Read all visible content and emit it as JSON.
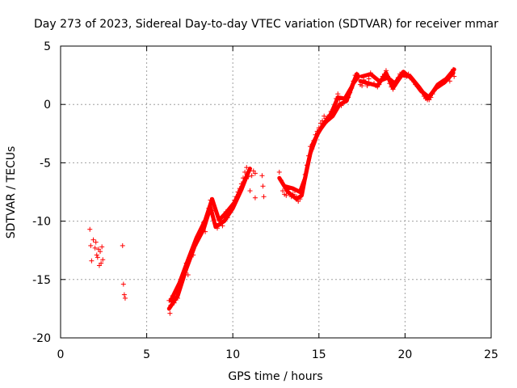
{
  "chart_data": {
    "type": "scatter",
    "title": "Day 273 of 2023, Sidereal Day-to-day VTEC variation (SDTVAR) for receiver mmar",
    "xlabel": "GPS time / hours",
    "ylabel": "SDTVAR / TECUs",
    "xlim": [
      0,
      25
    ],
    "ylim": [
      -20,
      5
    ],
    "xticks": [
      0,
      5,
      10,
      15,
      20,
      25
    ],
    "yticks": [
      -20,
      -15,
      -10,
      -5,
      0,
      5
    ],
    "grid": true,
    "marker": "+",
    "color": "#ff0000",
    "series": [
      {
        "name": "SDTVAR",
        "points": [
          [
            1.7,
            -10.7
          ],
          [
            1.75,
            -12.1
          ],
          [
            1.8,
            -13.4
          ],
          [
            1.9,
            -11.6
          ],
          [
            2.0,
            -12.3
          ],
          [
            2.05,
            -11.8
          ],
          [
            2.1,
            -12.9
          ],
          [
            2.15,
            -13.1
          ],
          [
            2.2,
            -12.4
          ],
          [
            2.25,
            -13.8
          ],
          [
            2.3,
            -12.6
          ],
          [
            2.35,
            -13.6
          ],
          [
            2.4,
            -12.2
          ],
          [
            2.45,
            -13.3
          ],
          [
            3.6,
            -12.1
          ],
          [
            3.65,
            -15.4
          ],
          [
            3.7,
            -16.3
          ],
          [
            3.75,
            -16.6
          ],
          [
            6.3,
            -16.8
          ],
          [
            6.35,
            -17.9
          ],
          [
            6.4,
            -17.2
          ],
          [
            6.5,
            -16.4
          ],
          [
            6.6,
            -17.0
          ],
          [
            6.7,
            -16.1
          ],
          [
            6.8,
            -16.6
          ],
          [
            6.9,
            -15.6
          ],
          [
            7.0,
            -15.2
          ],
          [
            7.1,
            -14.8
          ],
          [
            7.2,
            -14.3
          ],
          [
            7.3,
            -13.6
          ],
          [
            7.4,
            -14.6
          ],
          [
            7.5,
            -13.1
          ],
          [
            7.6,
            -12.6
          ],
          [
            7.7,
            -12.9
          ],
          [
            7.8,
            -12.1
          ],
          [
            7.9,
            -11.6
          ],
          [
            8.0,
            -11.3
          ],
          [
            8.1,
            -11.0
          ],
          [
            8.2,
            -10.6
          ],
          [
            8.3,
            -10.1
          ],
          [
            8.4,
            -10.9
          ],
          [
            8.5,
            -9.6
          ],
          [
            8.6,
            -8.9
          ],
          [
            8.7,
            -8.2
          ],
          [
            8.8,
            -9.1
          ],
          [
            8.9,
            -9.9
          ],
          [
            9.0,
            -10.2
          ],
          [
            9.1,
            -10.6
          ],
          [
            9.2,
            -10.3
          ],
          [
            9.3,
            -9.9
          ],
          [
            9.4,
            -10.4
          ],
          [
            9.5,
            -9.6
          ],
          [
            9.6,
            -9.2
          ],
          [
            9.7,
            -9.7
          ],
          [
            9.8,
            -9.0
          ],
          [
            9.9,
            -8.8
          ],
          [
            10.0,
            -8.6
          ],
          [
            10.1,
            -8.2
          ],
          [
            10.2,
            -7.9
          ],
          [
            10.3,
            -7.5
          ],
          [
            10.4,
            -7.2
          ],
          [
            10.5,
            -6.8
          ],
          [
            10.6,
            -6.3
          ],
          [
            10.7,
            -5.8
          ],
          [
            10.8,
            -5.4
          ],
          [
            10.9,
            -6.2
          ],
          [
            11.0,
            -7.4
          ],
          [
            11.1,
            -6.1
          ],
          [
            11.2,
            -5.7
          ],
          [
            11.3,
            -5.9
          ],
          [
            11.3,
            -8.0
          ],
          [
            11.7,
            -6.1
          ],
          [
            11.75,
            -7.0
          ],
          [
            11.8,
            -7.9
          ],
          [
            12.7,
            -5.8
          ],
          [
            12.8,
            -6.5
          ],
          [
            12.9,
            -7.4
          ],
          [
            13.0,
            -7.7
          ],
          [
            13.1,
            -7.8
          ],
          [
            13.2,
            -7.3
          ],
          [
            13.3,
            -7.6
          ],
          [
            13.4,
            -7.9
          ],
          [
            13.5,
            -7.7
          ],
          [
            13.6,
            -7.4
          ],
          [
            13.7,
            -7.9
          ],
          [
            13.8,
            -8.3
          ],
          [
            13.9,
            -8.1
          ],
          [
            14.0,
            -7.6
          ],
          [
            14.1,
            -6.8
          ],
          [
            14.2,
            -6.0
          ],
          [
            14.3,
            -5.2
          ],
          [
            14.4,
            -4.4
          ],
          [
            14.5,
            -3.6
          ],
          [
            14.6,
            -3.8
          ],
          [
            14.7,
            -3.1
          ],
          [
            14.8,
            -2.6
          ],
          [
            14.9,
            -2.3
          ],
          [
            15.0,
            -2.0
          ],
          [
            15.1,
            -1.6
          ],
          [
            15.2,
            -1.4
          ],
          [
            15.3,
            -1.0
          ],
          [
            15.4,
            -1.2
          ],
          [
            15.5,
            -1.4
          ],
          [
            15.6,
            -0.9
          ],
          [
            15.7,
            -0.6
          ],
          [
            15.8,
            -0.9
          ],
          [
            15.9,
            -0.5
          ],
          [
            16.0,
            0.5
          ],
          [
            16.1,
            0.9
          ],
          [
            16.2,
            0.4
          ],
          [
            16.3,
            -0.1
          ],
          [
            16.4,
            0.1
          ],
          [
            16.5,
            0.4
          ],
          [
            16.6,
            0.3
          ],
          [
            16.7,
            0.6
          ],
          [
            16.8,
            1.0
          ],
          [
            16.9,
            1.4
          ],
          [
            17.0,
            2.0
          ],
          [
            17.1,
            2.5
          ],
          [
            17.2,
            2.6
          ],
          [
            17.3,
            2.5
          ],
          [
            17.4,
            1.7
          ],
          [
            17.5,
            1.6
          ],
          [
            17.6,
            2.1
          ],
          [
            17.7,
            1.9
          ],
          [
            17.8,
            1.6
          ],
          [
            17.9,
            2.2
          ],
          [
            18.0,
            2.7
          ],
          [
            18.1,
            2.5
          ],
          [
            18.2,
            1.8
          ],
          [
            18.3,
            1.6
          ],
          [
            18.4,
            1.5
          ],
          [
            18.5,
            1.7
          ],
          [
            18.6,
            2.0
          ],
          [
            18.7,
            2.4
          ],
          [
            18.8,
            2.6
          ],
          [
            18.9,
            2.9
          ],
          [
            19.0,
            2.4
          ],
          [
            19.1,
            1.8
          ],
          [
            19.2,
            1.5
          ],
          [
            19.3,
            1.3
          ],
          [
            19.4,
            1.6
          ],
          [
            19.5,
            2.0
          ],
          [
            19.6,
            2.3
          ],
          [
            19.7,
            2.6
          ],
          [
            19.8,
            2.4
          ],
          [
            19.9,
            2.7
          ],
          [
            20.0,
            2.5
          ],
          [
            20.1,
            2.4
          ],
          [
            20.2,
            2.6
          ],
          [
            20.3,
            2.3
          ],
          [
            20.4,
            2.1
          ],
          [
            20.5,
            2.0
          ],
          [
            20.6,
            1.7
          ],
          [
            20.7,
            1.6
          ],
          [
            20.8,
            1.5
          ],
          [
            20.9,
            1.3
          ],
          [
            21.0,
            1.0
          ],
          [
            21.1,
            0.7
          ],
          [
            21.2,
            0.5
          ],
          [
            21.3,
            0.4
          ],
          [
            21.4,
            0.4
          ],
          [
            21.5,
            0.6
          ],
          [
            21.6,
            0.9
          ],
          [
            21.7,
            1.2
          ],
          [
            21.8,
            1.4
          ],
          [
            21.9,
            1.6
          ],
          [
            22.0,
            1.8
          ],
          [
            22.1,
            1.9
          ],
          [
            22.2,
            2.0
          ],
          [
            22.3,
            1.9
          ],
          [
            22.4,
            2.1
          ],
          [
            22.5,
            2.2
          ],
          [
            22.6,
            2.0
          ],
          [
            22.7,
            2.6
          ],
          [
            22.8,
            3.0
          ],
          [
            22.85,
            2.4
          ]
        ],
        "bands": [
          [
            [
              6.3,
              -17.5
            ],
            [
              6.8,
              -16.4
            ],
            [
              7.3,
              -14.1
            ],
            [
              7.8,
              -12.1
            ],
            [
              8.3,
              -10.7
            ],
            [
              8.7,
              -8.8
            ],
            [
              9.0,
              -10.5
            ],
            [
              9.5,
              -10.0
            ],
            [
              10.0,
              -8.9
            ],
            [
              10.5,
              -7.3
            ],
            [
              10.9,
              -5.8
            ]
          ],
          [
            [
              6.4,
              -16.8
            ],
            [
              6.9,
              -15.3
            ],
            [
              7.4,
              -13.3
            ],
            [
              7.9,
              -11.4
            ],
            [
              8.4,
              -9.9
            ],
            [
              8.8,
              -8.1
            ],
            [
              9.2,
              -9.9
            ],
            [
              9.6,
              -9.3
            ],
            [
              10.1,
              -8.4
            ],
            [
              10.6,
              -6.8
            ],
            [
              11.0,
              -5.5
            ]
          ],
          [
            [
              12.7,
              -6.3
            ],
            [
              13.2,
              -7.5
            ],
            [
              13.7,
              -8.1
            ],
            [
              14.0,
              -7.8
            ],
            [
              14.3,
              -5.5
            ],
            [
              14.6,
              -3.5
            ],
            [
              15.0,
              -2.3
            ],
            [
              15.4,
              -1.5
            ],
            [
              15.8,
              -1.0
            ],
            [
              16.2,
              0.0
            ],
            [
              16.6,
              0.3
            ],
            [
              17.0,
              1.8
            ],
            [
              17.3,
              2.4
            ]
          ],
          [
            [
              13.0,
              -7.0
            ],
            [
              13.5,
              -7.2
            ],
            [
              13.9,
              -7.5
            ],
            [
              14.2,
              -6.3
            ],
            [
              14.5,
              -4.2
            ],
            [
              14.9,
              -2.6
            ],
            [
              15.3,
              -1.6
            ],
            [
              15.7,
              -0.8
            ],
            [
              16.1,
              0.6
            ],
            [
              16.5,
              0.5
            ],
            [
              16.9,
              1.5
            ],
            [
              17.2,
              2.6
            ]
          ],
          [
            [
              17.4,
              2.0
            ],
            [
              17.9,
              1.8
            ],
            [
              18.4,
              1.6
            ],
            [
              18.9,
              2.7
            ],
            [
              19.3,
              1.4
            ],
            [
              19.8,
              2.5
            ],
            [
              20.3,
              2.4
            ],
            [
              20.8,
              1.5
            ],
            [
              21.3,
              0.5
            ],
            [
              21.8,
              1.4
            ],
            [
              22.3,
              1.9
            ],
            [
              22.8,
              2.7
            ]
          ],
          [
            [
              17.5,
              2.4
            ],
            [
              18.0,
              2.6
            ],
            [
              18.5,
              2.0
            ],
            [
              19.0,
              2.3
            ],
            [
              19.4,
              1.8
            ],
            [
              19.9,
              2.8
            ],
            [
              20.4,
              2.2
            ],
            [
              20.9,
              1.2
            ],
            [
              21.4,
              0.6
            ],
            [
              21.9,
              1.7
            ],
            [
              22.4,
              2.2
            ],
            [
              22.85,
              3.0
            ]
          ]
        ]
      }
    ]
  }
}
